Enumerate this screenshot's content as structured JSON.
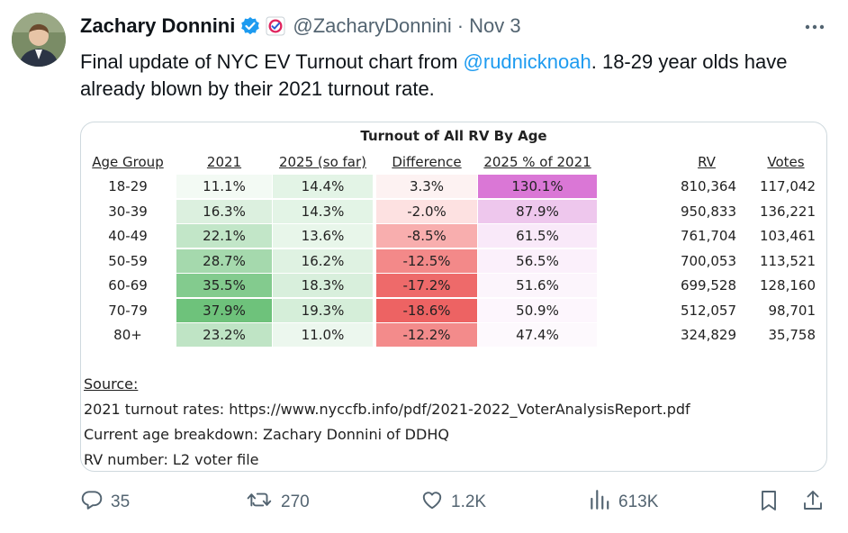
{
  "author": {
    "name": "Zachary Donnini",
    "handle": "@ZacharyDonnini",
    "separator": "·",
    "date": "Nov 3"
  },
  "tweet": {
    "text_before": "Final update of NYC EV Turnout chart from ",
    "mention": "@rudnicknoah",
    "text_after": ". 18-29 year olds have already blown by their 2021 turnout rate."
  },
  "chart_data": {
    "type": "table",
    "title": "Turnout of All RV By Age",
    "columns": [
      "Age Group",
      "2021",
      "2025 (so far)",
      "Difference",
      "2025 % of 2021",
      "RV",
      "Votes"
    ],
    "rows": [
      {
        "age": "18-29",
        "t2021": "11.1%",
        "t2025": "14.4%",
        "diff": "3.3%",
        "pct": "130.1%",
        "rv": "810,364",
        "votes": "117,042"
      },
      {
        "age": "30-39",
        "t2021": "16.3%",
        "t2025": "14.3%",
        "diff": "-2.0%",
        "pct": "87.9%",
        "rv": "950,833",
        "votes": "136,221"
      },
      {
        "age": "40-49",
        "t2021": "22.1%",
        "t2025": "13.6%",
        "diff": "-8.5%",
        "pct": "61.5%",
        "rv": "761,704",
        "votes": "103,461"
      },
      {
        "age": "50-59",
        "t2021": "28.7%",
        "t2025": "16.2%",
        "diff": "-12.5%",
        "pct": "56.5%",
        "rv": "700,053",
        "votes": "113,521"
      },
      {
        "age": "60-69",
        "t2021": "35.5%",
        "t2025": "18.3%",
        "diff": "-17.2%",
        "pct": "51.6%",
        "rv": "699,528",
        "votes": "128,160"
      },
      {
        "age": "70-79",
        "t2021": "37.9%",
        "t2025": "19.3%",
        "diff": "-18.6%",
        "pct": "50.9%",
        "rv": "512,057",
        "votes": "98,701"
      },
      {
        "age": "80+",
        "t2021": "23.2%",
        "t2025": "11.0%",
        "diff": "-12.2%",
        "pct": "47.4%",
        "rv": "324,829",
        "votes": "35,758"
      }
    ],
    "heat_colors": {
      "t2021": [
        "#f3faf4",
        "#dcf0df",
        "#c2e6c8",
        "#a5d9ad",
        "#83cb8e",
        "#6ec27b",
        "#bfe4c5"
      ],
      "t2025": [
        "#e3f4e6",
        "#e3f4e6",
        "#e8f6ea",
        "#dff2e2",
        "#d8efdc",
        "#d5eed9",
        "#ecf7ee"
      ],
      "diff": [
        "#fdf2f2",
        "#fde1e1",
        "#f8aeae",
        "#f38989",
        "#ee6a6a",
        "#ed6363",
        "#f38b8b"
      ],
      "pct": [
        "#da77d6",
        "#eec7ed",
        "#f9e9f9",
        "#fbf0fb",
        "#fcf5fc",
        "#fdf6fd",
        "#fdf9fd"
      ]
    },
    "source_title": "Source:",
    "source_lines": [
      "2021 turnout rates: https://www.nyccfb.info/pdf/2021-2022_VoterAnalysisReport.pdf",
      "Current age breakdown: Zachary Donnini of DDHQ",
      "RV number: L2 voter file"
    ]
  },
  "actions": {
    "replies": "35",
    "reposts": "270",
    "likes": "1.2K",
    "views": "613K"
  },
  "colors": {
    "accent": "#1d9bf0",
    "secondary_text": "#536471"
  },
  "icons": [
    "verified-badge-icon",
    "affiliate-badge-icon",
    "more-icon",
    "reply-icon",
    "repost-icon",
    "like-icon",
    "views-icon",
    "bookmark-icon",
    "share-icon"
  ]
}
